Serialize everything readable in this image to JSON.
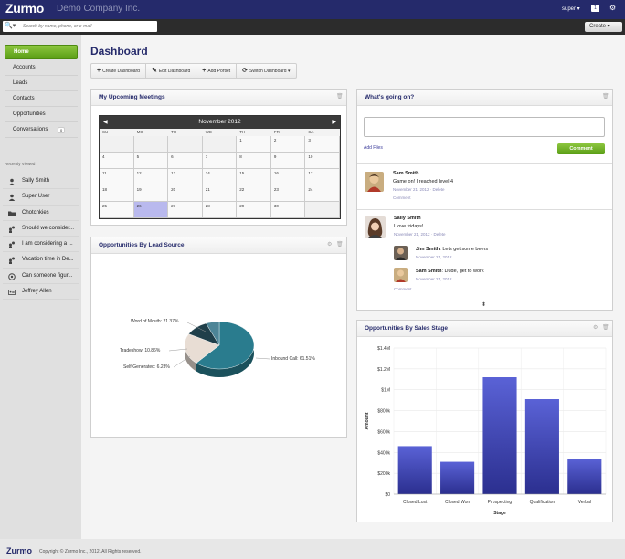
{
  "header": {
    "logo": "Zurmo",
    "company": "Demo Company Inc.",
    "user": "super ▾",
    "notifications": "1",
    "search_placeholder": "Search by name, phone, or e-mail",
    "create_label": "Create ▾"
  },
  "nav": {
    "items": [
      {
        "label": "Home",
        "active": true
      },
      {
        "label": "Accounts"
      },
      {
        "label": "Leads"
      },
      {
        "label": "Contacts"
      },
      {
        "label": "Opportunities"
      },
      {
        "label": "Conversations",
        "badge": "0"
      }
    ],
    "recently_viewed_title": "Recently Viewed",
    "recently_viewed": [
      {
        "label": "Sally Smith",
        "icon": "person-icon"
      },
      {
        "label": "Super User",
        "icon": "person-icon"
      },
      {
        "label": "Chotchkies",
        "icon": "folder-icon"
      },
      {
        "label": "Should we consider...",
        "icon": "conversation-icon"
      },
      {
        "label": "I am considering a ...",
        "icon": "conversation-icon"
      },
      {
        "label": "Vacation time in De...",
        "icon": "conversation-icon"
      },
      {
        "label": "Can someone figur...",
        "icon": "mission-icon"
      },
      {
        "label": "Jeffrey Allen",
        "icon": "contact-card-icon"
      }
    ]
  },
  "page": {
    "title": "Dashboard",
    "toolbar": {
      "create": "Create Dashboard",
      "edit": "Edit Dashboard",
      "add": "Add Portlet",
      "switch": "Switch Dashboard"
    }
  },
  "meetings": {
    "title": "My Upcoming Meetings",
    "month": "November 2012",
    "dows": [
      "SU",
      "MO",
      "TU",
      "WE",
      "TH",
      "FR",
      "SA"
    ],
    "days": [
      "",
      "",
      "",
      "",
      "1",
      "2",
      "3",
      "4",
      "5",
      "6",
      "7",
      "8",
      "9",
      "10",
      "11",
      "12",
      "13",
      "14",
      "15",
      "16",
      "17",
      "18",
      "19",
      "20",
      "21",
      "22",
      "23",
      "24",
      "25",
      "26",
      "27",
      "28",
      "29",
      "30",
      ""
    ]
  },
  "lead_source": {
    "title": "Opportunities By Lead Source",
    "labels": {
      "wom": "Word of Mouth: 21.37%",
      "trade": "Tradeshow: 10.86%",
      "self": "Self-Generated: 6.23%",
      "inbound": "Inbound Call: 61.51%"
    }
  },
  "activity": {
    "title": "What's going on?",
    "add_files": "Add Files",
    "comment_button": "Comment",
    "posts": [
      {
        "name": "Sam Smith",
        "text": "Game on! I reached level 4",
        "date": "November 21, 2012 · ",
        "delete": "Delete",
        "comment": "Comment"
      },
      {
        "name": "Sally Smith",
        "text": "I love fridays!",
        "date": "November 21, 2012 · ",
        "delete": "Delete"
      }
    ],
    "replies": [
      {
        "name": "Jim Smith",
        "text": ": Lets get some beers",
        "date": "November 21, 2012"
      },
      {
        "name": "Sam Smith",
        "text": ": Dude, get to work",
        "date": "November 21, 2012"
      }
    ],
    "comment2": "Comment"
  },
  "sales_stage": {
    "title": "Opportunities By Sales Stage"
  },
  "chart_data": [
    {
      "type": "pie",
      "title": "Opportunities By Lead Source",
      "categories": [
        "Inbound Call",
        "Word of Mouth",
        "Tradeshow",
        "Self-Generated"
      ],
      "values": [
        61.51,
        21.37,
        10.86,
        6.23
      ],
      "colors": [
        "#2a7c8e",
        "#e8ddd4",
        "#1f3f4a",
        "#4d8597"
      ]
    },
    {
      "type": "bar",
      "title": "Opportunities By Sales Stage",
      "categories": [
        "Closed Lost",
        "Closed Won",
        "Prospecting",
        "Qualification",
        "Verbal"
      ],
      "values": [
        460000,
        310000,
        1120000,
        910000,
        340000
      ],
      "xlabel": "Stage",
      "ylabel": "Amount",
      "ylim": [
        0,
        1400000
      ],
      "ticks": [
        "$0",
        "$200k",
        "$400k",
        "$600k",
        "$800k",
        "$1M",
        "$1.2M",
        "$1.4M"
      ],
      "color": "#3d44b4"
    }
  ],
  "footer": {
    "logo": "Zurmo",
    "copyright": "Copyright © Zurmo Inc., 2012. All Rights reserved."
  }
}
